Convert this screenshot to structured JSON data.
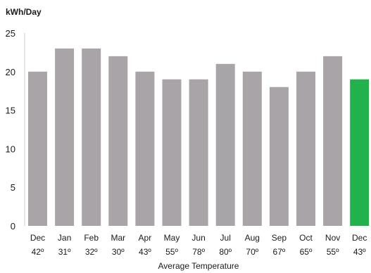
{
  "chart_data": {
    "type": "bar",
    "title": "",
    "ylabel": "kWh/Day",
    "xlabel": "Average Temperature",
    "ylim": [
      0,
      25
    ],
    "yticks": [
      0,
      5,
      10,
      15,
      20,
      25
    ],
    "grid": false,
    "categories": [
      "Dec",
      "Jan",
      "Feb",
      "Mar",
      "Apr",
      "May",
      "Jun",
      "Jul",
      "Aug",
      "Sep",
      "Oct",
      "Nov",
      "Dec"
    ],
    "temperatures": [
      "42º",
      "31º",
      "32º",
      "30º",
      "43º",
      "55º",
      "78º",
      "80º",
      "70º",
      "67º",
      "65º",
      "55º",
      "43º"
    ],
    "values": [
      20,
      23,
      23,
      22,
      20,
      19,
      19,
      21,
      20,
      18,
      20,
      22,
      19
    ],
    "highlight_index": 12,
    "colors": {
      "bar": "#a8a4a8",
      "highlight": "#22b24c",
      "axis": "#cfcfcf"
    }
  }
}
